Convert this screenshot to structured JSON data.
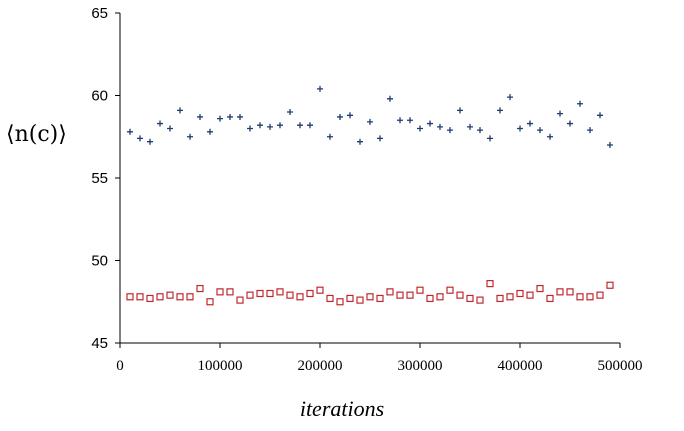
{
  "chart_data": {
    "type": "scatter",
    "xlabel": "iterations",
    "ylabel": "⟨n(c)⟩",
    "xlim": [
      0,
      500000
    ],
    "ylim": [
      45,
      65
    ],
    "xticks": [
      "0",
      "100000",
      "200000",
      "300000",
      "400000",
      "500000"
    ],
    "yticks": [
      "45",
      "50",
      "55",
      "60",
      "65"
    ],
    "grid": false,
    "colors": {
      "series_a": "#1f3b70",
      "series_b": "#c0282e"
    },
    "series": [
      {
        "marker": "plus",
        "x": [
          10000,
          20000,
          30000,
          40000,
          50000,
          60000,
          70000,
          80000,
          90000,
          100000,
          110000,
          120000,
          130000,
          140000,
          150000,
          160000,
          170000,
          180000,
          190000,
          200000,
          210000,
          220000,
          230000,
          240000,
          250000,
          260000,
          270000,
          280000,
          290000,
          300000,
          310000,
          320000,
          330000,
          340000,
          350000,
          360000,
          370000,
          380000,
          390000,
          400000,
          410000,
          420000,
          430000,
          440000,
          450000,
          460000,
          470000,
          480000,
          490000
        ],
        "y": [
          57.8,
          57.4,
          57.2,
          58.3,
          58.0,
          59.1,
          57.5,
          58.7,
          57.8,
          58.6,
          58.7,
          58.7,
          58.0,
          58.2,
          58.1,
          58.2,
          59.0,
          58.2,
          58.2,
          60.4,
          57.5,
          58.7,
          58.8,
          57.2,
          58.4,
          57.4,
          59.8,
          58.5,
          58.5,
          58.0,
          58.3,
          58.1,
          57.9,
          59.1,
          58.1,
          57.9,
          57.4,
          59.1,
          59.9,
          58.0,
          58.3,
          57.9,
          57.5,
          58.9,
          58.3,
          59.5,
          57.9,
          58.8,
          57.0
        ]
      },
      {
        "marker": "square",
        "x": [
          10000,
          20000,
          30000,
          40000,
          50000,
          60000,
          70000,
          80000,
          90000,
          100000,
          110000,
          120000,
          130000,
          140000,
          150000,
          160000,
          170000,
          180000,
          190000,
          200000,
          210000,
          220000,
          230000,
          240000,
          250000,
          260000,
          270000,
          280000,
          290000,
          300000,
          310000,
          320000,
          330000,
          340000,
          350000,
          360000,
          370000,
          380000,
          390000,
          400000,
          410000,
          420000,
          430000,
          440000,
          450000,
          460000,
          470000,
          480000,
          490000
        ],
        "y": [
          47.8,
          47.8,
          47.7,
          47.8,
          47.9,
          47.8,
          47.8,
          48.3,
          47.5,
          48.1,
          48.1,
          47.6,
          47.9,
          48.0,
          48.0,
          48.1,
          47.9,
          47.8,
          48.0,
          48.2,
          47.7,
          47.5,
          47.7,
          47.6,
          47.8,
          47.7,
          48.1,
          47.9,
          47.9,
          48.2,
          47.7,
          47.8,
          48.2,
          47.9,
          47.7,
          47.6,
          48.6,
          47.7,
          47.8,
          48.0,
          47.9,
          48.3,
          47.7,
          48.1,
          48.1,
          47.8,
          47.8,
          47.9,
          48.5
        ]
      }
    ]
  }
}
